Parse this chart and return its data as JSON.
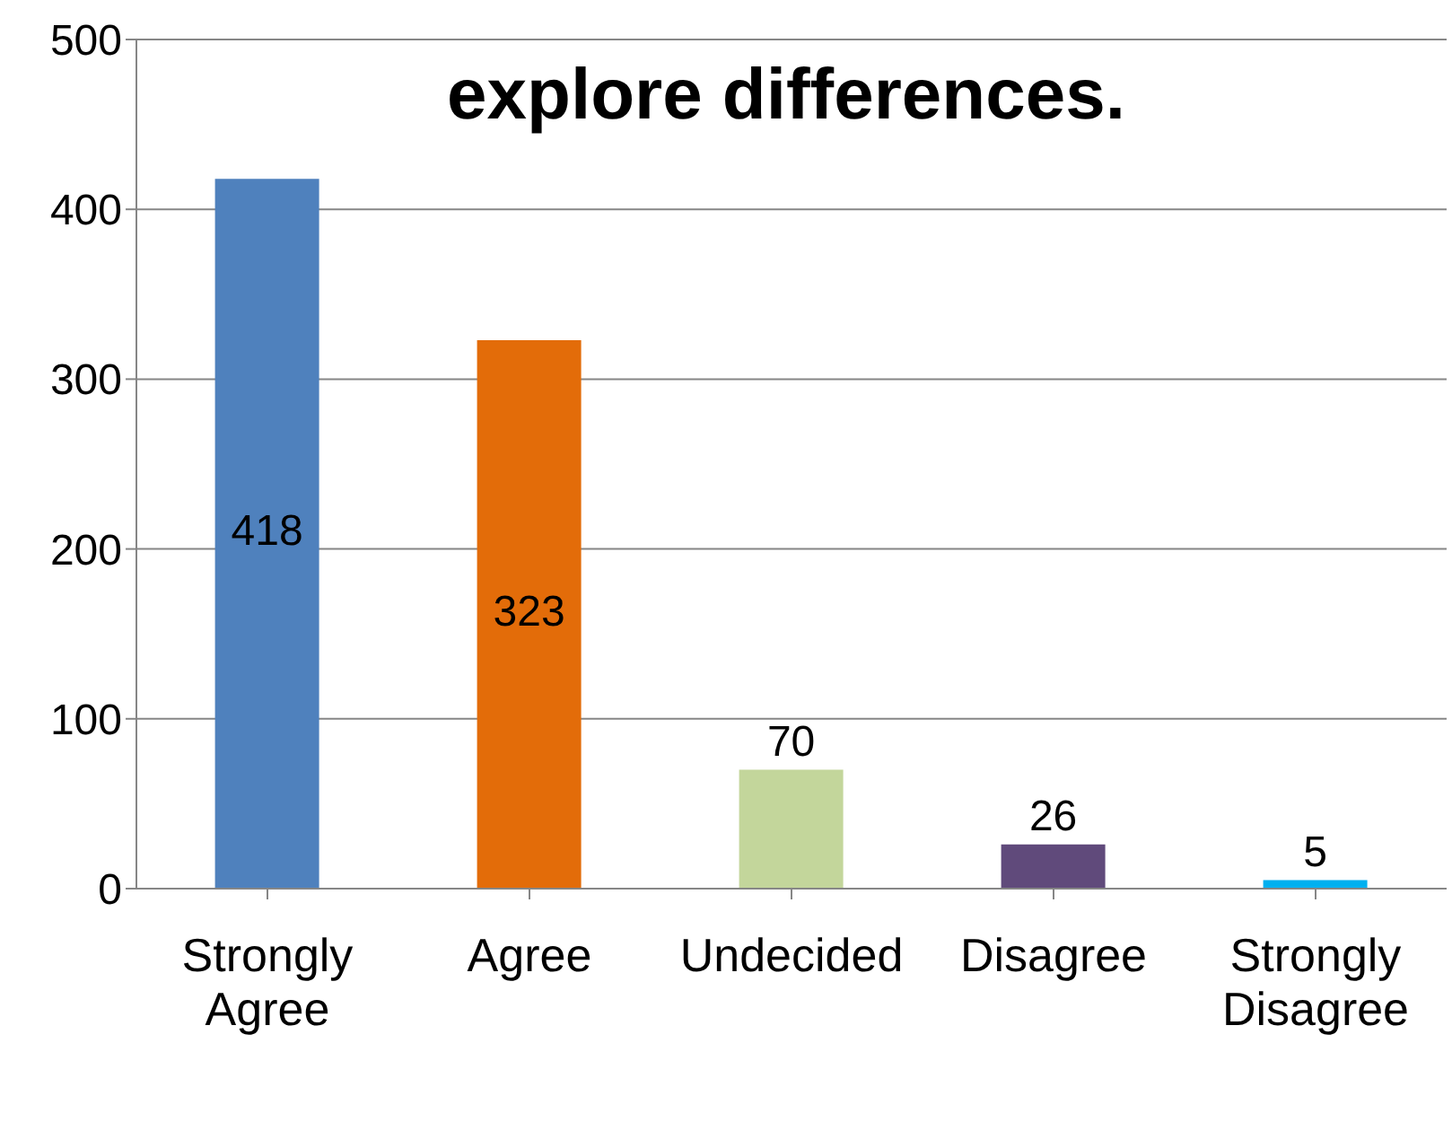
{
  "chart_data": {
    "type": "bar",
    "title": "explore differences.",
    "categories": [
      "Strongly Agree",
      "Agree",
      "Undecided",
      "Disagree",
      "Strongly Disagree"
    ],
    "values": [
      418,
      323,
      70,
      26,
      5
    ],
    "colors": [
      "#4f81bd",
      "#e36c09",
      "#c3d69b",
      "#604a7b",
      "#00b0f0"
    ],
    "ylim": [
      0,
      500
    ],
    "yticks": [
      0,
      100,
      200,
      300,
      400,
      500
    ],
    "grid": "y",
    "data_labels": true
  }
}
